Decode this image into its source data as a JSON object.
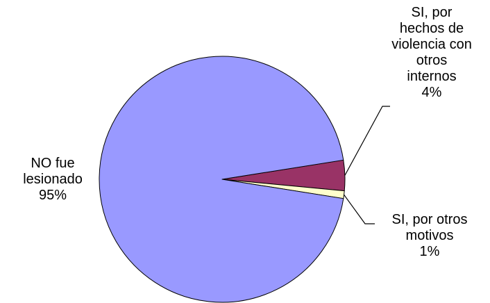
{
  "chart_data": {
    "type": "pie",
    "slices": [
      {
        "label_lines": [
          "NO fue",
          "lesionado"
        ],
        "value": 95,
        "value_label": "95%",
        "color": "#9999ff"
      },
      {
        "label_lines": [
          "SI, por",
          "hechos de",
          "violencia con",
          "otros",
          "internos"
        ],
        "value": 4,
        "value_label": "4%",
        "color": "#993366"
      },
      {
        "label_lines": [
          "SI, por otros",
          "motivos"
        ],
        "value": 1,
        "value_label": "1%",
        "color": "#ffffcc"
      }
    ],
    "legend": "none",
    "data_labels": "outside-with-leader-lines"
  }
}
